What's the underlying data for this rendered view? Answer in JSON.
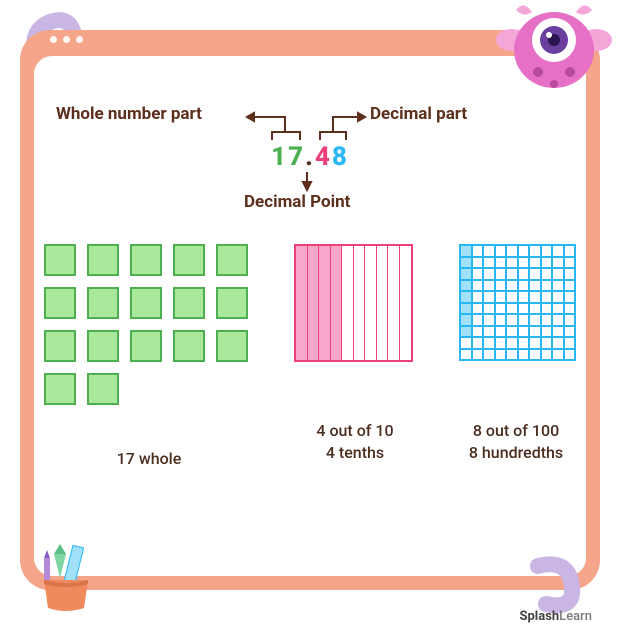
{
  "labels": {
    "whole_part": "Whole number part",
    "decimal_part": "Decimal part",
    "decimal_point": "Decimal Point"
  },
  "number": {
    "whole": "17",
    "dot": ".",
    "tenths_digit": "4",
    "hundredths_digit": "8"
  },
  "colors": {
    "frame": "#f4a58a",
    "label_text": "#5d2f1d",
    "whole_digit": "#4caf50",
    "dot": "#4b2e1e",
    "tenths_digit": "#ec407a",
    "hundredths_digit": "#29b6f6",
    "square_fill": "#a9e89b",
    "square_border": "#4caf50",
    "tenth_fill": "#f8a7cb",
    "tenth_border": "#ec407a",
    "hundredth_fill": "#a0e1f9",
    "hundredth_border": "#29b6f6",
    "squiggle": "#c9b6e4",
    "mascot_body": "#e670c5",
    "mascot_spots": "#b84aa0",
    "cup": "#f08a5d"
  },
  "visuals": {
    "squares_count": 17,
    "squares_cols": 5,
    "tenths_total": 10,
    "tenths_filled": 4,
    "hundredths_total": 100,
    "hundredths_filled": 8
  },
  "captions": {
    "whole": "17 whole",
    "tenths_line1": "4 out of 10",
    "tenths_line2": "4 tenths",
    "hundredths_line1": "8 out of 100",
    "hundredths_line2": "8 hundredths"
  },
  "brand": {
    "bold": "Splash",
    "rest": "Learn"
  }
}
